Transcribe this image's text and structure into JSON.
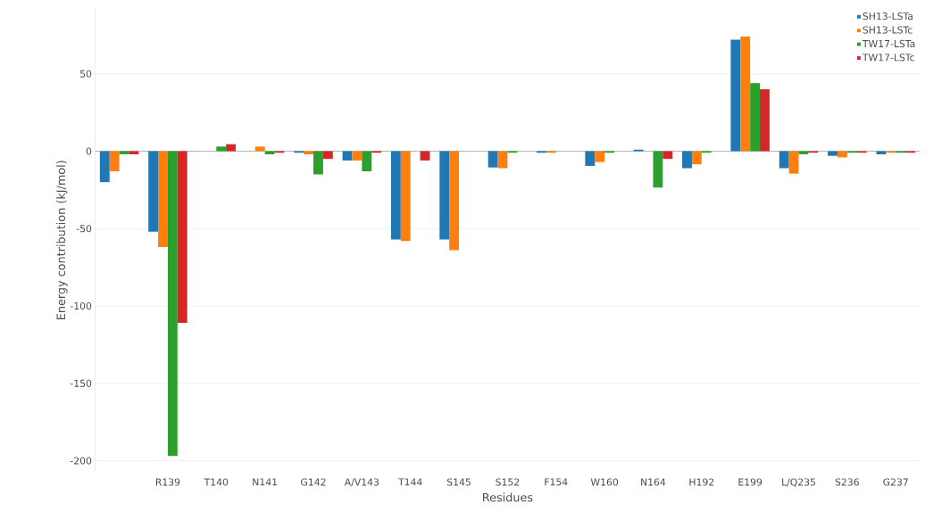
{
  "chart_data": {
    "type": "bar",
    "xlabel": "Residues",
    "ylabel": "Energy contribution (kJ/mol)",
    "categories": [
      null,
      "R139",
      "T140",
      "N141",
      "G142",
      "A/V143",
      "T144",
      "S145",
      "S152",
      "F154",
      "W160",
      "N164",
      "H192",
      "E199",
      "L/Q235",
      "S236",
      "G237"
    ],
    "series": [
      {
        "name": "SH13-LSTa",
        "color": "#1f77b4",
        "values": [
          -20,
          -52,
          0,
          0,
          -1,
          -6,
          -57,
          -57,
          -10.5,
          -1,
          -9.5,
          1,
          -11,
          72,
          -11,
          -3,
          -2
        ]
      },
      {
        "name": "SH13-LSTc",
        "color": "#ff7f0e",
        "values": [
          -13,
          -62,
          0,
          3,
          -2,
          -6,
          -58,
          -64,
          -11,
          -1,
          -7,
          0,
          -8.5,
          74,
          -14.5,
          -4,
          -1
        ]
      },
      {
        "name": "TW17-LSTa",
        "color": "#2ca02c",
        "values": [
          -2,
          -197,
          3,
          -2,
          -15,
          -13,
          0,
          0,
          -1,
          null,
          -1,
          -23.5,
          -1,
          44,
          -2,
          -1,
          -1
        ]
      },
      {
        "name": "TW17-LSTc",
        "color": "#d62728",
        "values": [
          -2,
          -111,
          4.5,
          -1,
          -5,
          -1,
          -6,
          0,
          null,
          null,
          null,
          -5,
          null,
          40,
          -1,
          -1,
          -1
        ]
      }
    ],
    "ylim": [
      -207,
      92
    ],
    "yticks": [
      -200,
      -150,
      -100,
      -50,
      0,
      50
    ],
    "grid": "y",
    "legend": "top right"
  }
}
